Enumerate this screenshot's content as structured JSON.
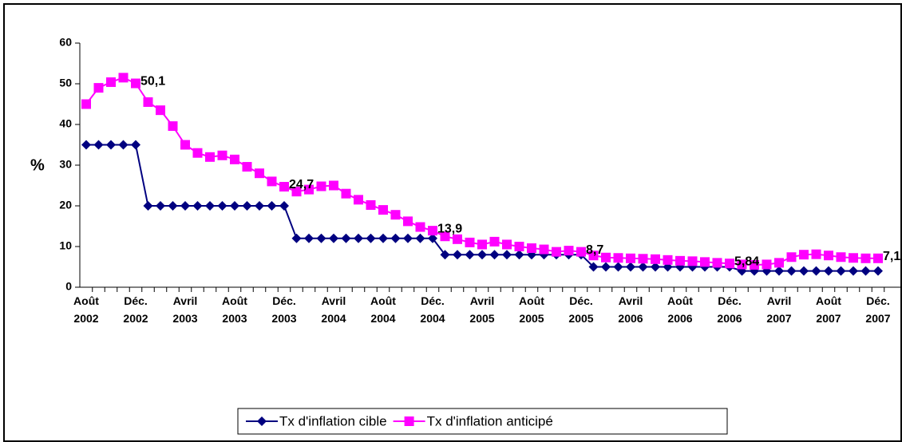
{
  "chart_data": {
    "type": "line",
    "ylabel": "%",
    "categories": [
      "Août 2002",
      null,
      null,
      null,
      "Déc. 2002",
      null,
      null,
      null,
      "Avril 2003",
      null,
      null,
      null,
      "Août 2003",
      null,
      null,
      null,
      "Déc. 2003",
      null,
      null,
      null,
      "Avril 2004",
      null,
      null,
      null,
      "Août 2004",
      null,
      null,
      null,
      "Déc. 2004",
      null,
      null,
      null,
      "Avril 2005",
      null,
      null,
      null,
      "Août 2005",
      null,
      null,
      null,
      "Déc. 2005",
      null,
      null,
      null,
      "Avril 2006",
      null,
      null,
      null,
      "Août 2006",
      null,
      null,
      null,
      "Déc. 2006",
      null,
      null,
      null,
      "Avril 2007",
      null,
      null,
      null,
      "Août 2007",
      null,
      null,
      null,
      "Déc. 2007"
    ],
    "series": [
      {
        "name": "Tx d'inflation cible",
        "color": "#000080",
        "marker": "diamond",
        "values": [
          35,
          35,
          35,
          35,
          35,
          20,
          20,
          20,
          20,
          20,
          20,
          20,
          20,
          20,
          20,
          20,
          20,
          12,
          12,
          12,
          12,
          12,
          12,
          12,
          12,
          12,
          12,
          12,
          12,
          8,
          8,
          8,
          8,
          8,
          8,
          8,
          8,
          8,
          8,
          8,
          8,
          5,
          5,
          5,
          5,
          5,
          5,
          5,
          5,
          5,
          5,
          5,
          5,
          4,
          4,
          4,
          4,
          4,
          4,
          4,
          4,
          4,
          4,
          4,
          4
        ]
      },
      {
        "name": "Tx d'inflation anticipé",
        "color": "#ff00ff",
        "marker": "square",
        "values": [
          45,
          49,
          50.4,
          51.5,
          50.1,
          45.5,
          43.5,
          39.6,
          35,
          33,
          32,
          32.4,
          31.4,
          29.6,
          28,
          26,
          24.7,
          23.5,
          24,
          24.8,
          25,
          23,
          21.5,
          20.2,
          19,
          17.8,
          16.2,
          14.8,
          13.9,
          12.5,
          11.8,
          11,
          10.5,
          11.2,
          10.5,
          10,
          9.6,
          9.3,
          8.7,
          9,
          8.7,
          7.8,
          7.3,
          7.2,
          7.1,
          7,
          6.9,
          6.7,
          6.5,
          6.4,
          6.2,
          6,
          5.84,
          5.6,
          5.5,
          5.6,
          6,
          7.4,
          8,
          8.1,
          7.8,
          7.4,
          7.2,
          7.1,
          7.1
        ],
        "value_labels": [
          null,
          null,
          null,
          null,
          "50,1",
          null,
          null,
          null,
          null,
          null,
          null,
          null,
          null,
          null,
          null,
          null,
          "24,7",
          null,
          null,
          null,
          null,
          null,
          null,
          null,
          null,
          null,
          null,
          null,
          "13,9",
          null,
          null,
          null,
          null,
          null,
          null,
          null,
          null,
          null,
          null,
          null,
          "8,7",
          null,
          null,
          null,
          null,
          null,
          null,
          null,
          null,
          null,
          null,
          null,
          "5,84",
          null,
          null,
          null,
          null,
          null,
          null,
          null,
          null,
          null,
          null,
          null,
          "7,1"
        ]
      }
    ],
    "ylim": [
      0,
      60
    ],
    "yticks": [
      0,
      10,
      20,
      30,
      40,
      50,
      60
    ],
    "grid": false,
    "legend": "bottom"
  }
}
